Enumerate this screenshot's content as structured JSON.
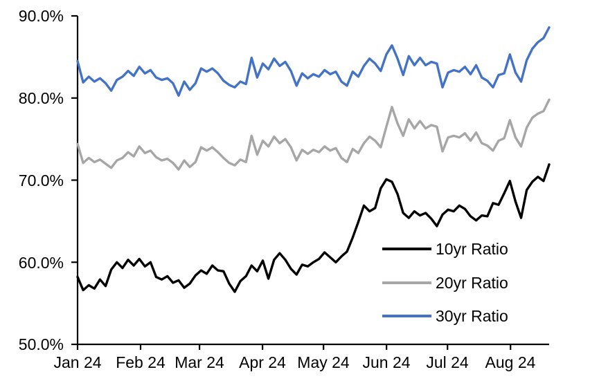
{
  "chart_data": {
    "type": "line",
    "title": "",
    "background_color": "#ffffff",
    "grid": false,
    "x_axis": {
      "tick_labels": [
        "Jan 24",
        "Feb 24",
        "Mar 24",
        "Apr 24",
        "May 24",
        "Jun 24",
        "Jul 24",
        "Aug 24"
      ],
      "tick_day_offsets": [
        0,
        31,
        60,
        91,
        121,
        152,
        182,
        213
      ],
      "span_days": 232,
      "description": "Daily observations from start of Jan 2024 to late Aug 2024, evenly spaced"
    },
    "y_axis": {
      "tick_labels": [
        "90.0%",
        "80.0%",
        "70.0%",
        "60.0%",
        "50.0%"
      ],
      "tick_values": [
        90,
        80,
        70,
        60,
        50
      ],
      "min": 50,
      "max": 90,
      "unit": "%"
    },
    "legend": {
      "position": "inside-lower-right",
      "entries": [
        "10yr Ratio",
        "20yr Ratio",
        "30yr Ratio"
      ]
    },
    "series": [
      {
        "name": "10yr Ratio",
        "color": "#000000",
        "values": [
          58.2,
          56.6,
          57.2,
          56.8,
          57.9,
          57.1,
          59.1,
          60.0,
          59.3,
          60.3,
          59.6,
          60.4,
          59.5,
          60.0,
          58.2,
          57.9,
          58.3,
          57.5,
          57.8,
          56.9,
          57.4,
          58.4,
          59.0,
          58.6,
          59.6,
          59.0,
          58.9,
          57.4,
          56.4,
          57.7,
          58.3,
          59.6,
          58.9,
          60.2,
          58.0,
          60.3,
          61.1,
          60.3,
          59.2,
          58.5,
          59.7,
          59.5,
          60.0,
          60.4,
          61.2,
          60.6,
          60.0,
          60.7,
          61.3,
          63.0,
          64.9,
          66.9,
          66.2,
          66.6,
          69.0,
          70.1,
          69.8,
          68.3,
          66.0,
          65.4,
          66.2,
          65.7,
          66.0,
          65.3,
          64.4,
          65.8,
          66.4,
          66.2,
          66.9,
          66.5,
          65.6,
          65.1,
          65.7,
          65.6,
          67.2,
          67.0,
          68.4,
          69.9,
          67.4,
          65.4,
          68.8,
          69.8,
          70.4,
          69.9,
          71.9
        ]
      },
      {
        "name": "20yr Ratio",
        "color": "#A6A6A6",
        "values": [
          74.4,
          72.1,
          72.7,
          72.2,
          72.5,
          72.0,
          71.5,
          72.4,
          72.7,
          73.4,
          72.9,
          74.1,
          73.3,
          73.6,
          72.8,
          72.4,
          72.6,
          72.1,
          71.3,
          72.4,
          71.6,
          72.2,
          74.0,
          73.6,
          74.0,
          73.4,
          72.7,
          72.1,
          71.8,
          72.5,
          72.2,
          75.4,
          73.1,
          74.8,
          74.1,
          75.3,
          74.5,
          75.0,
          74.0,
          72.4,
          73.7,
          73.2,
          73.7,
          73.4,
          74.1,
          73.6,
          73.9,
          72.7,
          72.2,
          73.8,
          73.3,
          74.5,
          75.3,
          74.8,
          74.0,
          76.5,
          78.9,
          76.9,
          75.4,
          77.4,
          76.3,
          77.2,
          76.3,
          76.7,
          76.5,
          73.5,
          75.2,
          75.4,
          75.2,
          75.7,
          74.8,
          75.8,
          74.5,
          74.2,
          73.6,
          74.8,
          75.1,
          77.3,
          75.2,
          74.1,
          76.4,
          77.6,
          78.1,
          78.4,
          79.8
        ]
      },
      {
        "name": "30yr Ratio",
        "color": "#4472C4",
        "values": [
          84.5,
          81.9,
          82.6,
          82.0,
          82.4,
          81.8,
          80.9,
          82.2,
          82.6,
          83.3,
          82.7,
          83.8,
          83.0,
          83.4,
          82.5,
          82.2,
          82.4,
          81.8,
          80.3,
          82.0,
          81.0,
          81.8,
          83.6,
          83.2,
          83.6,
          83.0,
          82.1,
          81.6,
          81.3,
          82.0,
          81.7,
          84.9,
          82.5,
          84.2,
          83.5,
          84.8,
          83.9,
          84.4,
          83.3,
          81.5,
          83.0,
          82.4,
          82.9,
          82.6,
          83.4,
          82.9,
          83.2,
          82.0,
          81.5,
          83.2,
          82.6,
          83.9,
          84.8,
          84.2,
          83.3,
          85.3,
          86.4,
          84.8,
          82.8,
          85.1,
          84.0,
          84.9,
          84.0,
          84.4,
          84.2,
          81.3,
          83.1,
          83.4,
          83.2,
          83.8,
          82.9,
          84.0,
          82.5,
          82.1,
          81.3,
          82.8,
          83.0,
          85.3,
          83.1,
          82.0,
          84.6,
          86.0,
          86.8,
          87.3,
          88.6
        ]
      }
    ],
    "axis_color": "#000000"
  }
}
